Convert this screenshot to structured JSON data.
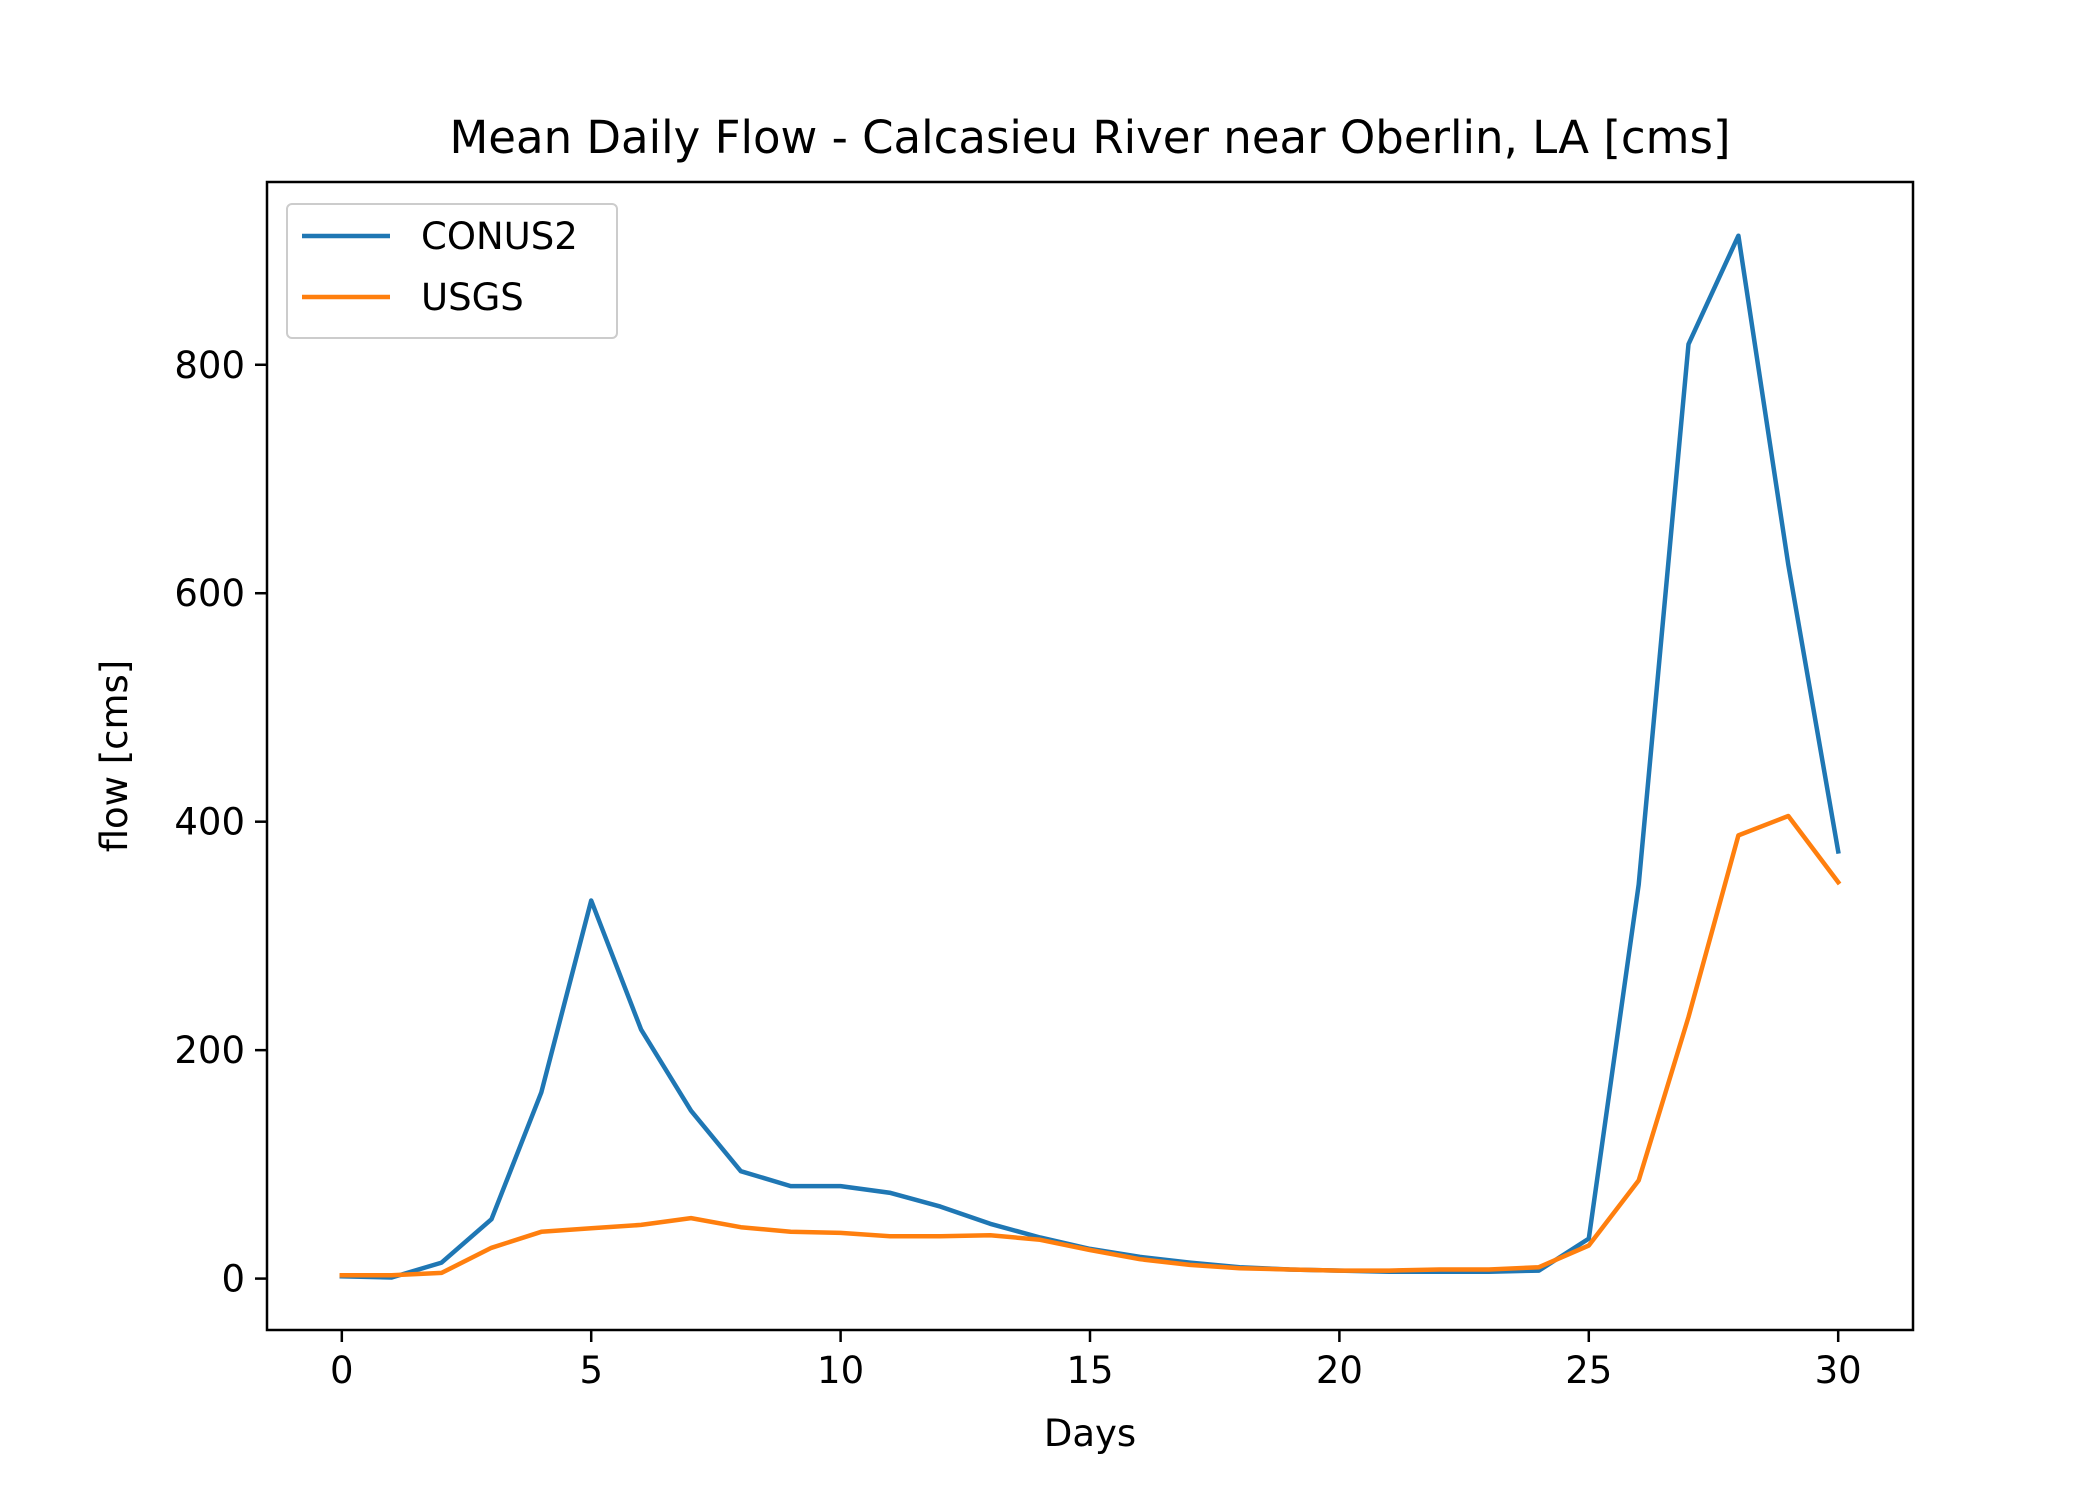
{
  "chart_data": {
    "type": "line",
    "title": "Mean Daily Flow - Calcasieu River near Oberlin, LA [cms]",
    "xlabel": "Days",
    "ylabel": "flow [cms]",
    "xlim": [
      -1.5,
      31.5
    ],
    "ylim": [
      -45,
      960
    ],
    "xticks": [
      0,
      5,
      10,
      15,
      20,
      25,
      30
    ],
    "yticks": [
      0,
      200,
      400,
      600,
      800
    ],
    "legend_position": "upper-left",
    "grid": false,
    "x": [
      0,
      1,
      2,
      3,
      4,
      5,
      6,
      7,
      8,
      9,
      10,
      11,
      12,
      13,
      14,
      15,
      16,
      17,
      18,
      19,
      20,
      21,
      22,
      23,
      24,
      25,
      26,
      27,
      28,
      29,
      30
    ],
    "series": [
      {
        "name": "CONUS2",
        "color": "#1f77b4",
        "values": [
          2,
          1,
          14,
          52,
          163,
          331,
          218,
          147,
          94,
          81,
          81,
          75,
          63,
          48,
          36,
          26,
          19,
          14,
          10,
          8,
          7,
          6,
          6,
          6,
          7,
          35,
          345,
          818,
          913,
          625,
          374
        ]
      },
      {
        "name": "USGS",
        "color": "#ff7f0e",
        "values": [
          3,
          3,
          5,
          27,
          41,
          44,
          47,
          53,
          45,
          41,
          40,
          37,
          37,
          38,
          34,
          25,
          17,
          12,
          9,
          8,
          7,
          7,
          8,
          8,
          10,
          29,
          86,
          229,
          388,
          405,
          347
        ]
      }
    ]
  }
}
